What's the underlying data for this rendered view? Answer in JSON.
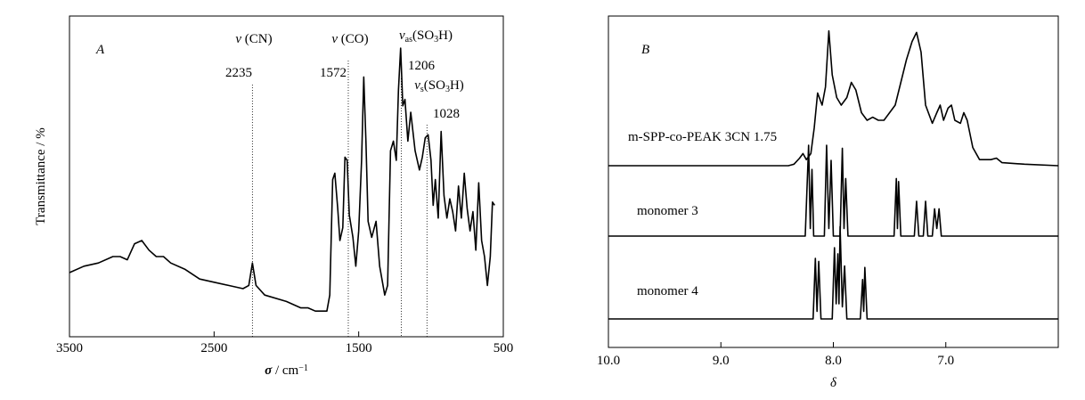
{
  "chart_data": [
    {
      "type": "line",
      "panel_label": "A",
      "ylabel": "Transmittance / %",
      "xlabel": [
        {
          "text": "σ",
          "bold": true,
          "italic": true
        },
        {
          "text": " / cm"
        },
        {
          "text": "−1",
          "sup": true
        }
      ],
      "xlim": [
        3500,
        500
      ],
      "xticks": [
        3500,
        2500,
        1500,
        500
      ],
      "ylim": [
        0,
        100
      ],
      "color": "#000000",
      "x": [
        3500,
        3400,
        3300,
        3200,
        3150,
        3100,
        3050,
        3000,
        2950,
        2900,
        2850,
        2800,
        2700,
        2600,
        2500,
        2400,
        2300,
        2260,
        2235,
        2210,
        2150,
        2000,
        1900,
        1850,
        1800,
        1760,
        1720,
        1700,
        1680,
        1665,
        1645,
        1630,
        1610,
        1595,
        1580,
        1565,
        1540,
        1520,
        1500,
        1480,
        1465,
        1450,
        1435,
        1410,
        1380,
        1355,
        1320,
        1300,
        1280,
        1260,
        1240,
        1225,
        1210,
        1195,
        1180,
        1160,
        1140,
        1110,
        1080,
        1060,
        1040,
        1020,
        1000,
        985,
        970,
        950,
        930,
        910,
        890,
        870,
        850,
        830,
        810,
        790,
        770,
        750,
        730,
        710,
        690,
        670,
        650,
        630,
        610,
        590,
        575,
        560
      ],
      "series": [
        {
          "values": [
            20,
            22,
            23,
            25,
            25,
            24,
            29,
            30,
            27,
            25,
            25,
            23,
            21,
            18,
            17,
            16,
            15,
            16,
            23,
            16,
            13,
            11,
            9,
            9,
            8,
            8,
            8,
            13,
            49,
            51,
            40,
            30,
            34,
            56,
            55,
            38,
            31,
            22,
            33,
            55,
            81,
            61,
            36,
            31,
            36,
            22,
            13,
            16,
            58,
            61,
            55,
            77,
            90,
            72,
            74,
            61,
            70,
            58,
            52,
            56,
            62,
            63,
            55,
            41,
            49,
            37,
            64,
            44,
            37,
            43,
            39,
            33,
            47,
            37,
            51,
            40,
            33,
            39,
            27,
            48,
            30,
            25,
            16,
            25,
            42,
            41
          ]
        }
      ],
      "annotations": [
        {
          "x": 2235,
          "label": "2235",
          "title": [
            {
              "text": "v",
              "italic": true
            },
            {
              "text": " (CN)"
            }
          ]
        },
        {
          "x": 1572,
          "label": "1572",
          "title": [
            {
              "text": "v",
              "italic": true
            },
            {
              "text": " (CO)"
            }
          ]
        },
        {
          "x": 1206,
          "label": "1206",
          "title": [
            {
              "text": "v",
              "italic": true
            },
            {
              "text": "as",
              "sub": true
            },
            {
              "text": "(SO"
            },
            {
              "text": "3",
              "sub": true
            },
            {
              "text": "H)"
            }
          ]
        },
        {
          "x": 1028,
          "label": "1028",
          "title": [
            {
              "text": "v",
              "italic": true
            },
            {
              "text": "s",
              "sub": true
            },
            {
              "text": "(SO"
            },
            {
              "text": "3",
              "sub": true
            },
            {
              "text": "H)"
            }
          ]
        }
      ]
    },
    {
      "type": "line",
      "panel_label": "B",
      "xlabel": [
        {
          "text": "δ",
          "italic": true
        }
      ],
      "xlim": [
        10,
        6
      ],
      "xticks": [
        {
          "value": 10,
          "label": "10.0"
        },
        {
          "value": 9,
          "label": "9.0"
        },
        {
          "value": 8,
          "label": "8.0"
        },
        {
          "value": 7,
          "label": "7.0"
        }
      ],
      "ylim": [
        0,
        100
      ],
      "color": "#000000",
      "series": [
        {
          "name": "m-SPP-co-PEAK 3CN 1.75",
          "x": [
            10.0,
            8.4,
            8.35,
            8.3,
            8.27,
            8.24,
            8.2,
            8.17,
            8.14,
            8.1,
            8.07,
            8.04,
            8.01,
            7.97,
            7.93,
            7.88,
            7.84,
            7.8,
            7.75,
            7.7,
            7.65,
            7.6,
            7.55,
            7.5,
            7.45,
            7.4,
            7.35,
            7.3,
            7.26,
            7.22,
            7.18,
            7.12,
            7.08,
            7.05,
            7.02,
            6.98,
            6.95,
            6.92,
            6.87,
            6.84,
            6.81,
            6.76,
            6.7,
            6.6,
            6.55,
            6.5,
            6.3,
            6.0
          ],
          "values": [
            0,
            0,
            1,
            5,
            8,
            4,
            8,
            25,
            48,
            40,
            52,
            89,
            60,
            45,
            40,
            45,
            55,
            50,
            35,
            30,
            32,
            30,
            30,
            35,
            40,
            55,
            70,
            82,
            88,
            75,
            40,
            28,
            35,
            40,
            30,
            38,
            40,
            30,
            28,
            35,
            30,
            12,
            4,
            4,
            5,
            2,
            1,
            0
          ]
        },
        {
          "name": "monomer 3",
          "x": [
            10.0,
            8.25,
            8.22,
            8.205,
            8.19,
            8.175,
            8.08,
            8.06,
            8.04,
            8.02,
            8.0,
            7.94,
            7.92,
            7.905,
            7.89,
            7.87,
            7.46,
            7.44,
            7.43,
            7.42,
            7.4,
            7.28,
            7.26,
            7.24,
            7.2,
            7.18,
            7.16,
            7.12,
            7.1,
            7.08,
            7.06,
            7.04,
            6.0
          ],
          "values": [
            0,
            0,
            60,
            5,
            44,
            0,
            0,
            60,
            5,
            50,
            0,
            0,
            58,
            5,
            38,
            0,
            0,
            38,
            5,
            36,
            0,
            0,
            23,
            0,
            0,
            23,
            0,
            0,
            18,
            5,
            18,
            0,
            0
          ]
        },
        {
          "name": "monomer 4",
          "x": [
            10.0,
            8.18,
            8.16,
            8.145,
            8.13,
            8.11,
            8.01,
            7.99,
            7.975,
            7.96,
            7.95,
            7.94,
            7.92,
            7.9,
            7.88,
            7.76,
            7.74,
            7.73,
            7.72,
            7.7,
            6.0
          ],
          "values": [
            0,
            0,
            40,
            5,
            38,
            0,
            0,
            47,
            10,
            43,
            10,
            61,
            8,
            35,
            0,
            0,
            26,
            5,
            34,
            0,
            0
          ]
        }
      ]
    }
  ]
}
